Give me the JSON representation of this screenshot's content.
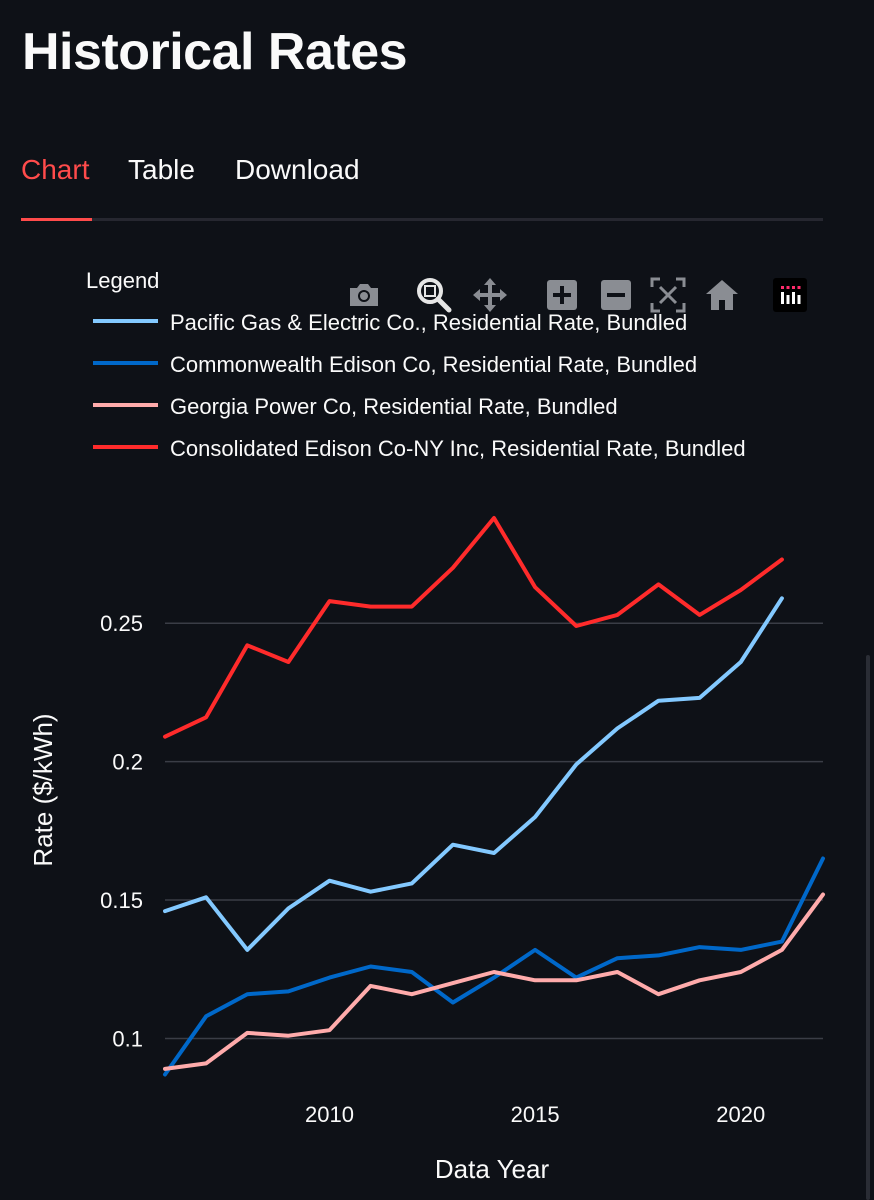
{
  "page": {
    "title": "Historical Rates"
  },
  "tabs": [
    {
      "label": "Chart",
      "active": true
    },
    {
      "label": "Table",
      "active": false
    },
    {
      "label": "Download",
      "active": false
    }
  ],
  "modebar": [
    {
      "icon": "camera-icon"
    },
    {
      "icon": "zoom-icon"
    },
    {
      "icon": "pan-icon"
    },
    {
      "icon": "zoom-in-icon"
    },
    {
      "icon": "zoom-out-icon"
    },
    {
      "icon": "autoscale-icon"
    },
    {
      "icon": "reset-axes-icon"
    },
    {
      "icon": "plotly-logo-icon"
    }
  ],
  "colors": {
    "background": "#0e1117",
    "accent": "#ff4b4b",
    "grid": "#3a3d46"
  },
  "chart_data": {
    "type": "line",
    "legend_title": "Legend",
    "legend_position": "top-left",
    "xlabel": "Data Year",
    "ylabel": "Rate ($/kWh)",
    "xlim": [
      2006,
      2022
    ],
    "ylim": [
      0.085,
      0.2945
    ],
    "x_ticks": [
      2010,
      2015,
      2020
    ],
    "y_ticks": [
      0.1,
      0.15,
      0.2,
      0.25
    ],
    "y_tick_labels": [
      "0.1",
      "0.15",
      "0.2",
      "0.25"
    ],
    "grid": true,
    "series": [
      {
        "name": "Pacific Gas & Electric Co., Residential Rate, Bundled",
        "color": "#83c9ff",
        "points": [
          [
            2006,
            0.146
          ],
          [
            2007,
            0.151
          ],
          [
            2008,
            0.132
          ],
          [
            2009,
            0.147
          ],
          [
            2010,
            0.157
          ],
          [
            2011,
            0.153
          ],
          [
            2012,
            0.156
          ],
          [
            2013,
            0.17
          ],
          [
            2014,
            0.167
          ],
          [
            2015,
            0.18
          ],
          [
            2016,
            0.199
          ],
          [
            2017,
            0.212
          ],
          [
            2018,
            0.222
          ],
          [
            2019,
            0.223
          ],
          [
            2020,
            0.236
          ],
          [
            2021,
            0.259
          ]
        ]
      },
      {
        "name": "Commonwealth Edison Co, Residential Rate, Bundled",
        "color": "#0068c9",
        "points": [
          [
            2006,
            0.087
          ],
          [
            2007,
            0.108
          ],
          [
            2008,
            0.116
          ],
          [
            2009,
            0.117
          ],
          [
            2010,
            0.122
          ],
          [
            2011,
            0.126
          ],
          [
            2012,
            0.124
          ],
          [
            2013,
            0.113
          ],
          [
            2014,
            0.122
          ],
          [
            2015,
            0.132
          ],
          [
            2016,
            0.122
          ],
          [
            2017,
            0.129
          ],
          [
            2018,
            0.13
          ],
          [
            2019,
            0.133
          ],
          [
            2020,
            0.132
          ],
          [
            2021,
            0.135
          ],
          [
            2022,
            0.165
          ]
        ]
      },
      {
        "name": "Georgia Power Co, Residential Rate, Bundled",
        "color": "#ffabab",
        "points": [
          [
            2006,
            0.089
          ],
          [
            2007,
            0.091
          ],
          [
            2008,
            0.102
          ],
          [
            2009,
            0.101
          ],
          [
            2010,
            0.103
          ],
          [
            2011,
            0.119
          ],
          [
            2012,
            0.116
          ],
          [
            2013,
            0.12
          ],
          [
            2014,
            0.124
          ],
          [
            2015,
            0.121
          ],
          [
            2016,
            0.121
          ],
          [
            2017,
            0.124
          ],
          [
            2018,
            0.116
          ],
          [
            2019,
            0.121
          ],
          [
            2020,
            0.124
          ],
          [
            2021,
            0.132
          ],
          [
            2022,
            0.152
          ]
        ]
      },
      {
        "name": "Consolidated Edison Co-NY Inc, Residential Rate, Bundled",
        "color": "#ff2b2b",
        "points": [
          [
            2006,
            0.209
          ],
          [
            2007,
            0.216
          ],
          [
            2008,
            0.242
          ],
          [
            2009,
            0.236
          ],
          [
            2010,
            0.258
          ],
          [
            2011,
            0.256
          ],
          [
            2012,
            0.256
          ],
          [
            2013,
            0.27
          ],
          [
            2014,
            0.288
          ],
          [
            2015,
            0.263
          ],
          [
            2016,
            0.249
          ],
          [
            2017,
            0.253
          ],
          [
            2018,
            0.264
          ],
          [
            2019,
            0.253
          ],
          [
            2020,
            0.262
          ],
          [
            2021,
            0.273
          ]
        ]
      }
    ]
  }
}
